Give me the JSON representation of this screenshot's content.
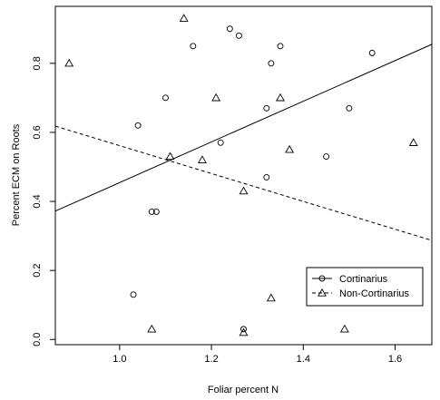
{
  "chart_data": {
    "type": "scatter",
    "title": "",
    "xlabel": "Foliar percent N",
    "ylabel": "Percent ECM on Roots",
    "xlim": [
      0.86,
      1.68
    ],
    "ylim": [
      -0.015,
      0.965
    ],
    "xticks": [
      {
        "value": 1.0,
        "label": "1.0"
      },
      {
        "value": 1.2,
        "label": "1.2"
      },
      {
        "value": 1.4,
        "label": "1.4"
      },
      {
        "value": 1.6,
        "label": "1.6"
      }
    ],
    "yticks": [
      {
        "value": 0.0,
        "label": "0.0"
      },
      {
        "value": 0.2,
        "label": "0.2"
      },
      {
        "value": 0.4,
        "label": "0.4"
      },
      {
        "value": 0.6,
        "label": "0.6"
      },
      {
        "value": 0.8,
        "label": "0.8"
      }
    ],
    "grid": false,
    "legend_position": "bottom-right",
    "series": [
      {
        "name": "Cortinarius",
        "marker": "circle",
        "line_style": "solid",
        "fit": {
          "x": [
            0.86,
            1.68
          ],
          "y": [
            0.372,
            0.855
          ]
        },
        "points": [
          {
            "x": 1.03,
            "y": 0.13
          },
          {
            "x": 1.04,
            "y": 0.62
          },
          {
            "x": 1.07,
            "y": 0.37
          },
          {
            "x": 1.08,
            "y": 0.37
          },
          {
            "x": 1.1,
            "y": 0.7
          },
          {
            "x": 1.16,
            "y": 0.85
          },
          {
            "x": 1.22,
            "y": 0.57
          },
          {
            "x": 1.24,
            "y": 0.9
          },
          {
            "x": 1.26,
            "y": 0.88
          },
          {
            "x": 1.27,
            "y": 0.03
          },
          {
            "x": 1.32,
            "y": 0.67
          },
          {
            "x": 1.32,
            "y": 0.47
          },
          {
            "x": 1.33,
            "y": 0.8
          },
          {
            "x": 1.35,
            "y": 0.85
          },
          {
            "x": 1.45,
            "y": 0.53
          },
          {
            "x": 1.5,
            "y": 0.67
          },
          {
            "x": 1.55,
            "y": 0.83
          }
        ]
      },
      {
        "name": "Non-Cortinarius",
        "marker": "triangle",
        "line_style": "dashed",
        "fit": {
          "x": [
            0.86,
            1.68
          ],
          "y": [
            0.618,
            0.287
          ]
        },
        "points": [
          {
            "x": 0.89,
            "y": 0.8
          },
          {
            "x": 1.07,
            "y": 0.03
          },
          {
            "x": 1.11,
            "y": 0.53
          },
          {
            "x": 1.14,
            "y": 0.93
          },
          {
            "x": 1.18,
            "y": 0.52
          },
          {
            "x": 1.21,
            "y": 0.7
          },
          {
            "x": 1.27,
            "y": 0.43
          },
          {
            "x": 1.27,
            "y": 0.02
          },
          {
            "x": 1.33,
            "y": 0.12
          },
          {
            "x": 1.35,
            "y": 0.7
          },
          {
            "x": 1.37,
            "y": 0.55
          },
          {
            "x": 1.49,
            "y": 0.03
          },
          {
            "x": 1.64,
            "y": 0.57
          }
        ]
      }
    ]
  }
}
